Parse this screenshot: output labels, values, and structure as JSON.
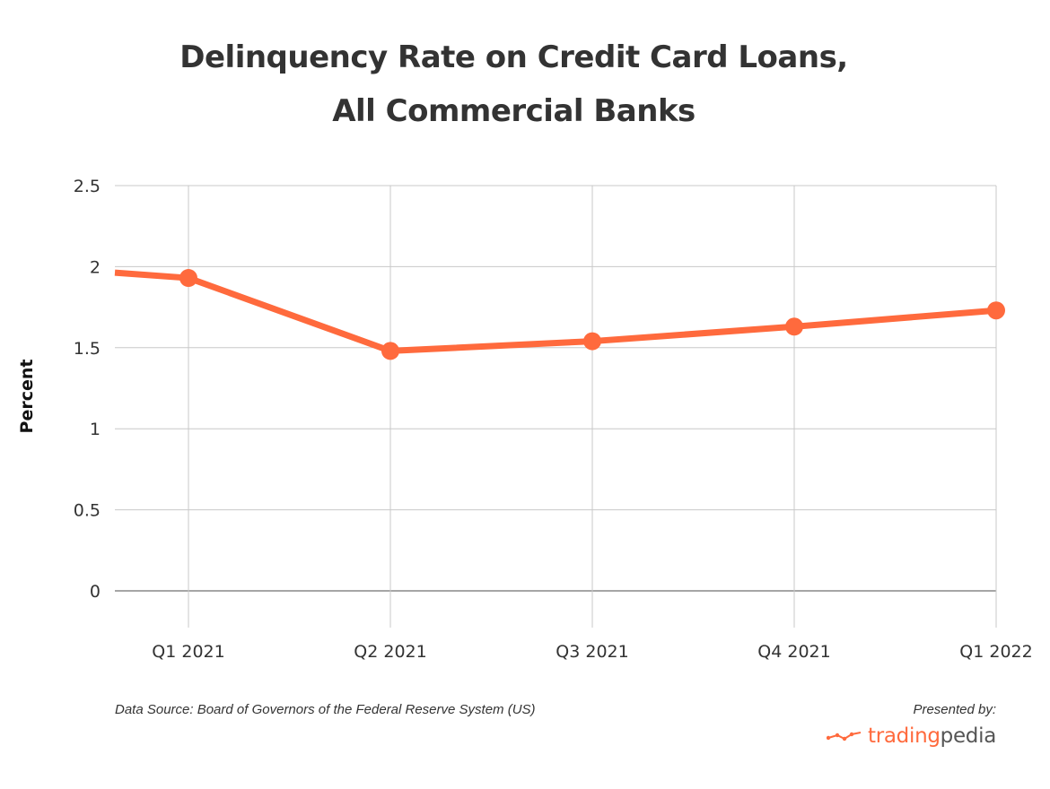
{
  "chart_data": {
    "type": "line",
    "title_line1": "Delinquency Rate on Credit Card Loans,",
    "title_line2": "All Commercial Banks",
    "ylabel": "Percent",
    "xlabel": "",
    "categories": [
      "Q1 2021",
      "Q2 2021",
      "Q3 2021",
      "Q4 2021",
      "Q1 2022"
    ],
    "ylim": [
      0,
      2.5
    ],
    "yticks": [
      "0",
      "0.5",
      "1",
      "1.5",
      "2",
      "2.5"
    ],
    "grid": true,
    "series": [
      {
        "values": [
          1.93,
          1.48,
          1.54,
          1.63,
          1.73
        ],
        "prior_value": 2.02,
        "color": "#ff6a3d"
      }
    ]
  },
  "footer": {
    "source": "Data Source: Board of Governors of the Federal Reserve System (US)",
    "presented_by": "Presented by:",
    "brand_part1": "trading",
    "brand_part2": "pedia"
  },
  "colors": {
    "accent": "#ff6a3d",
    "grid": "#c8c8c8",
    "text": "#333333"
  }
}
